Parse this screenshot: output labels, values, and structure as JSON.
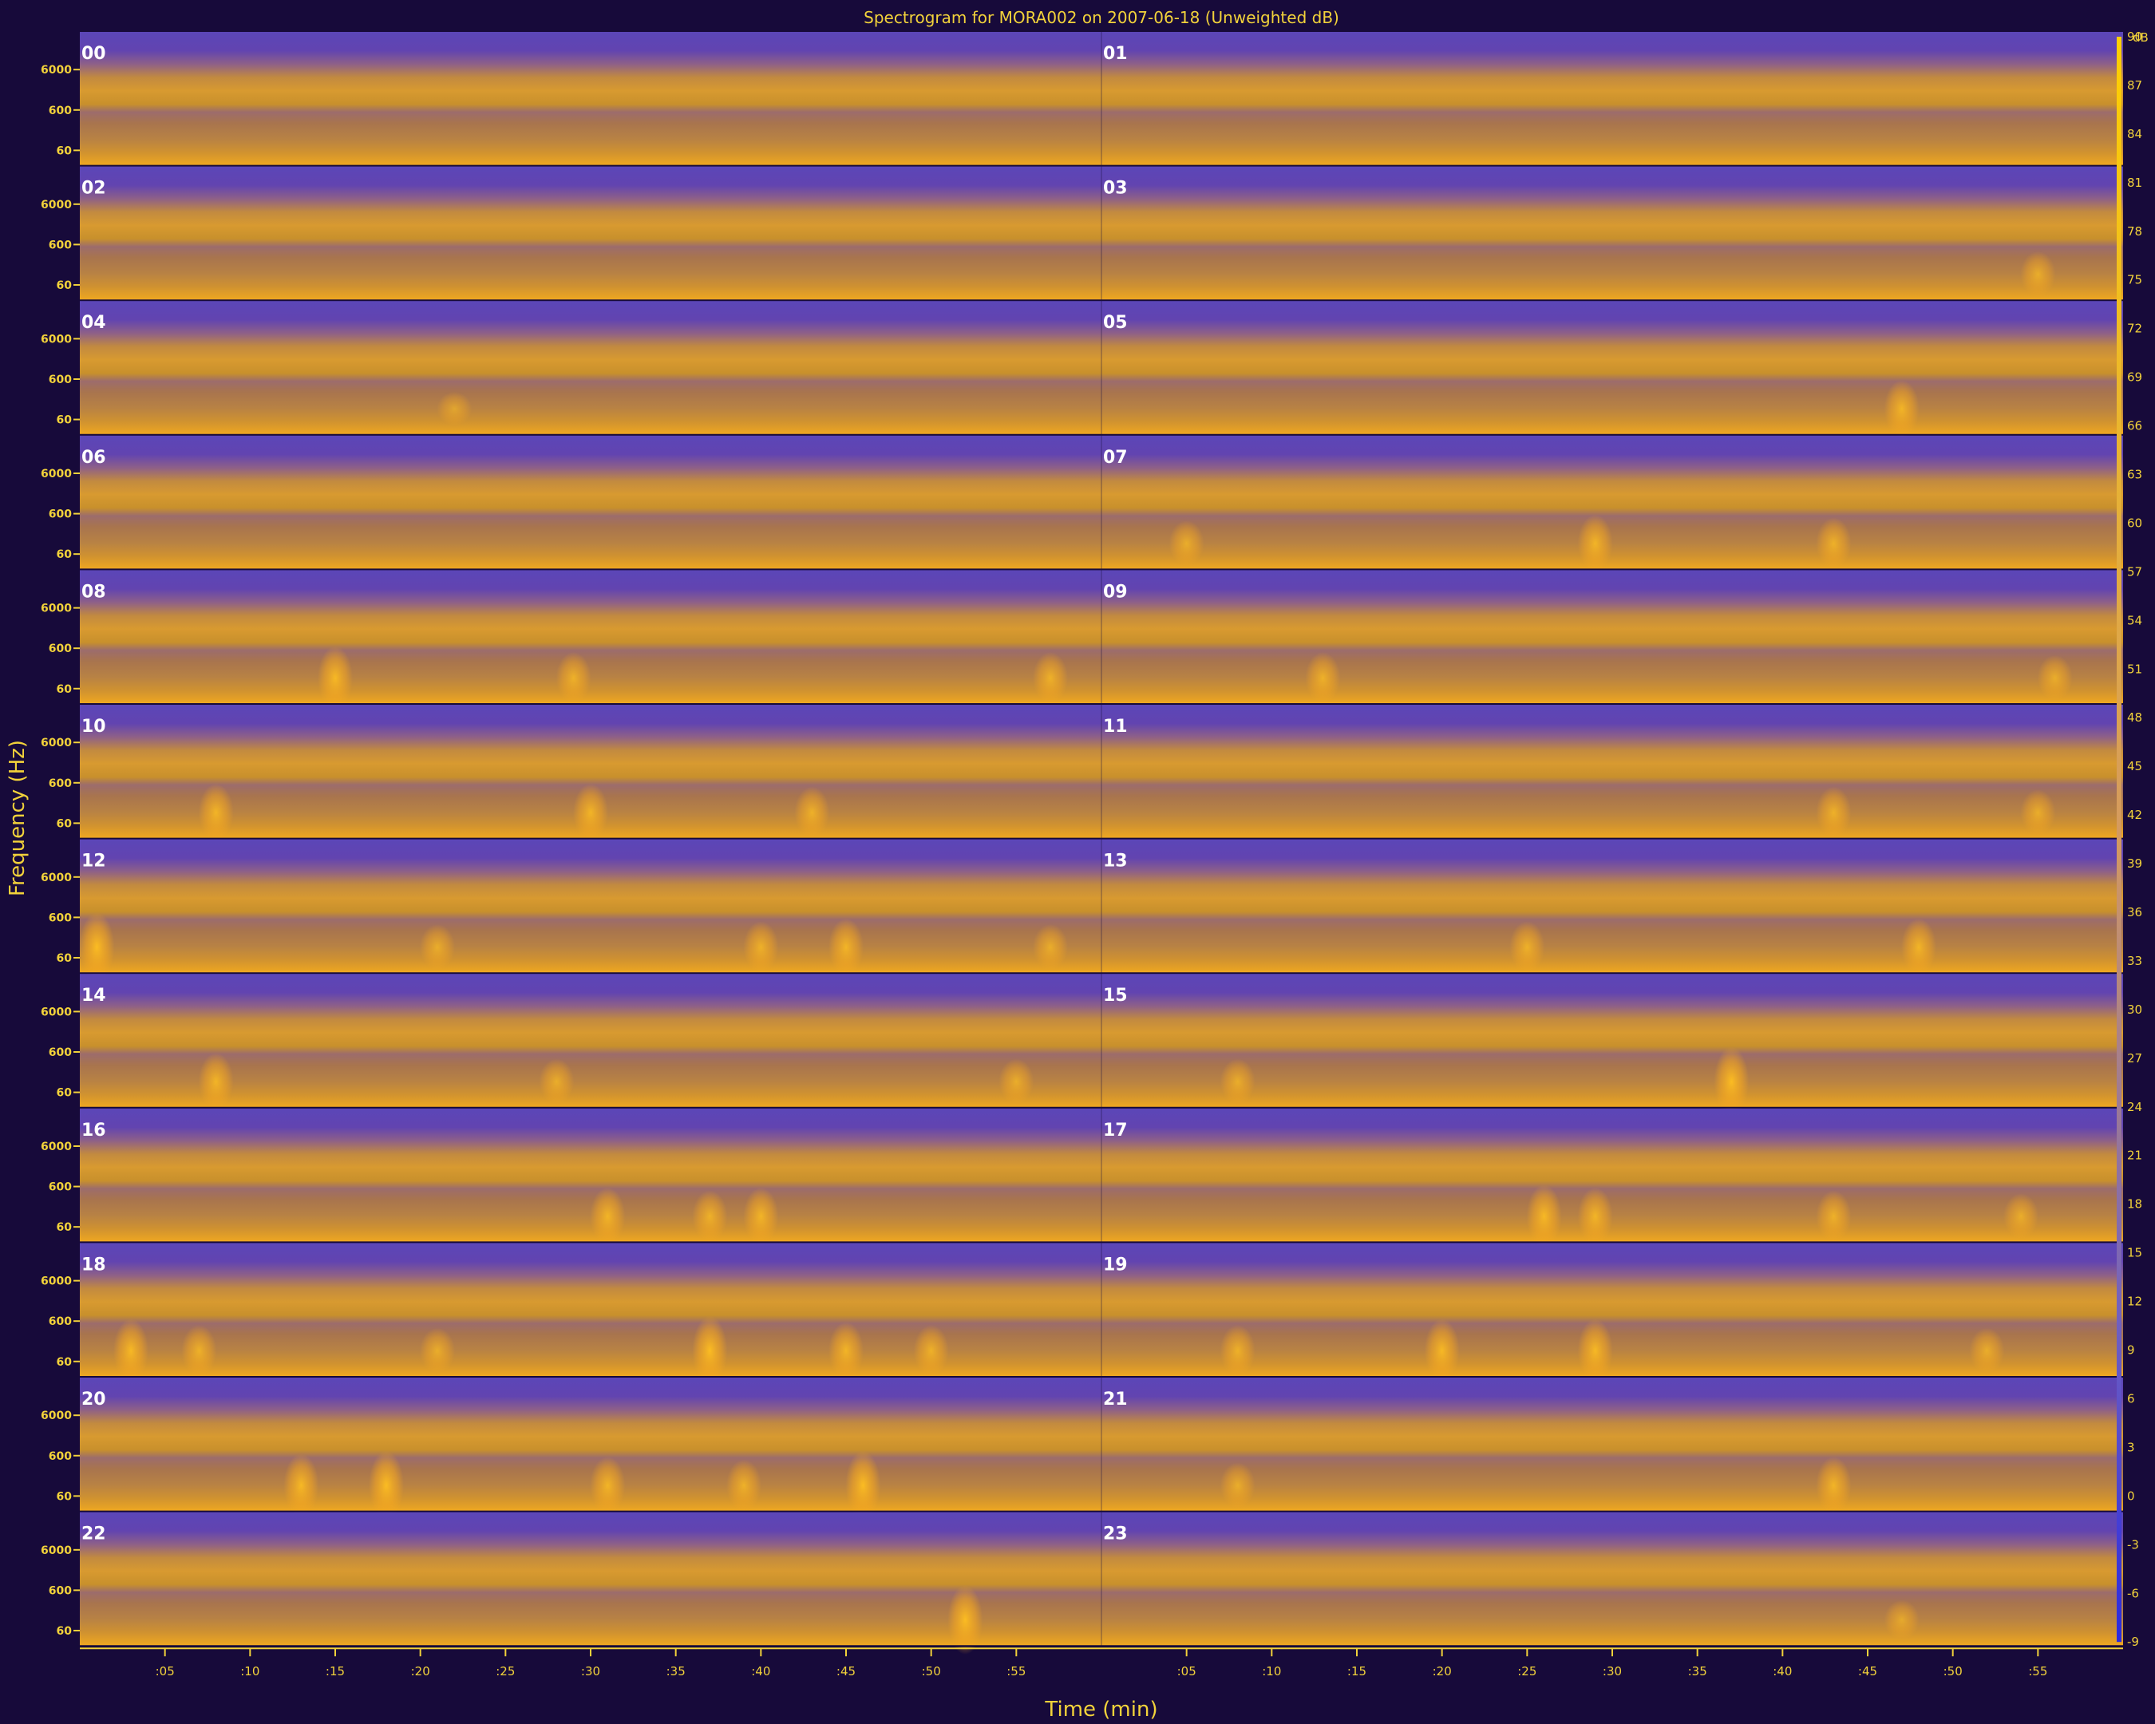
{
  "chart_data": {
    "type": "heatmap",
    "title": "Spectrogram for MORA002 on 2007-06-18 (Unweighted dB)",
    "xlabel": "Time (min)",
    "ylabel": "Frequency (Hz)",
    "colorbar_unit": "dB",
    "hours": [
      "00",
      "01",
      "02",
      "03",
      "04",
      "05",
      "06",
      "07",
      "08",
      "09",
      "10",
      "11",
      "12",
      "13",
      "14",
      "15",
      "16",
      "17",
      "18",
      "19",
      "20",
      "21",
      "22",
      "23"
    ],
    "x_ticks": [
      ":05",
      ":10",
      ":15",
      ":20",
      ":25",
      ":30",
      ":35",
      ":40",
      ":45",
      ":50",
      ":55"
    ],
    "x_tick_minutes": [
      5,
      10,
      15,
      20,
      25,
      30,
      35,
      40,
      45,
      50,
      55
    ],
    "xlim": [
      0,
      60
    ],
    "y_ticks": [
      "6000",
      "600",
      "60"
    ],
    "y_scale": "log",
    "colorbar_ticks": [
      90,
      87,
      84,
      81,
      78,
      75,
      72,
      69,
      66,
      63,
      60,
      57,
      54,
      51,
      48,
      45,
      42,
      39,
      36,
      33,
      30,
      27,
      24,
      21,
      18,
      15,
      12,
      9,
      6,
      3,
      0,
      -3,
      -6,
      -9
    ],
    "colorbar_range": [
      -9,
      90
    ],
    "colormap": {
      "low": "#2b2bd6",
      "mid": "#6a4aa8",
      "high": "#ffb000"
    },
    "activity": [
      [],
      [],
      [],
      [
        {
          "min": 55,
          "level": 0.5
        }
      ],
      [
        {
          "min": 22,
          "level": 0.3
        }
      ],
      [
        {
          "min": 47,
          "level": 0.7
        }
      ],
      [],
      [
        {
          "min": 5,
          "level": 0.5
        },
        {
          "min": 29,
          "level": 0.7
        },
        {
          "min": 43,
          "level": 0.6
        }
      ],
      [
        {
          "min": 15,
          "level": 0.8
        },
        {
          "min": 29,
          "level": 0.6
        },
        {
          "min": 57,
          "level": 0.6
        }
      ],
      [
        {
          "min": 13,
          "level": 0.6
        },
        {
          "min": 56,
          "level": 0.5
        }
      ],
      [
        {
          "min": 8,
          "level": 0.7
        },
        {
          "min": 30,
          "level": 0.7
        },
        {
          "min": 43,
          "level": 0.6
        }
      ],
      [
        {
          "min": 43,
          "level": 0.6
        },
        {
          "min": 55,
          "level": 0.5
        }
      ],
      [
        {
          "min": 1,
          "level": 0.9
        },
        {
          "min": 21,
          "level": 0.5
        },
        {
          "min": 40,
          "level": 0.6
        },
        {
          "min": 45,
          "level": 0.7
        },
        {
          "min": 57,
          "level": 0.5
        }
      ],
      [
        {
          "min": 25,
          "level": 0.6
        },
        {
          "min": 48,
          "level": 0.7
        }
      ],
      [
        {
          "min": 8,
          "level": 0.7
        },
        {
          "min": 28,
          "level": 0.5
        },
        {
          "min": 55,
          "level": 0.5
        }
      ],
      [
        {
          "min": 8,
          "level": 0.5
        },
        {
          "min": 37,
          "level": 0.9
        }
      ],
      [
        {
          "min": 31,
          "level": 0.7
        },
        {
          "min": 37,
          "level": 0.6
        },
        {
          "min": 40,
          "level": 0.7
        }
      ],
      [
        {
          "min": 26,
          "level": 0.8
        },
        {
          "min": 29,
          "level": 0.7
        },
        {
          "min": 43,
          "level": 0.6
        },
        {
          "min": 54,
          "level": 0.5
        }
      ],
      [
        {
          "min": 3,
          "level": 0.8
        },
        {
          "min": 7,
          "level": 0.6
        },
        {
          "min": 21,
          "level": 0.5
        },
        {
          "min": 37,
          "level": 0.9
        },
        {
          "min": 45,
          "level": 0.7
        },
        {
          "min": 50,
          "level": 0.6
        }
      ],
      [
        {
          "min": 8,
          "level": 0.6
        },
        {
          "min": 20,
          "level": 0.8
        },
        {
          "min": 29,
          "level": 0.8
        },
        {
          "min": 52,
          "level": 0.5
        }
      ],
      [
        {
          "min": 13,
          "level": 0.8
        },
        {
          "min": 18,
          "level": 0.9
        },
        {
          "min": 31,
          "level": 0.7
        },
        {
          "min": 39,
          "level": 0.6
        },
        {
          "min": 46,
          "level": 0.9
        }
      ],
      [
        {
          "min": 8,
          "level": 0.5
        },
        {
          "min": 43,
          "level": 0.7
        }
      ],
      [
        {
          "min": 52,
          "level": 0.9
        }
      ],
      [
        {
          "min": 47,
          "level": 0.4
        }
      ]
    ]
  }
}
